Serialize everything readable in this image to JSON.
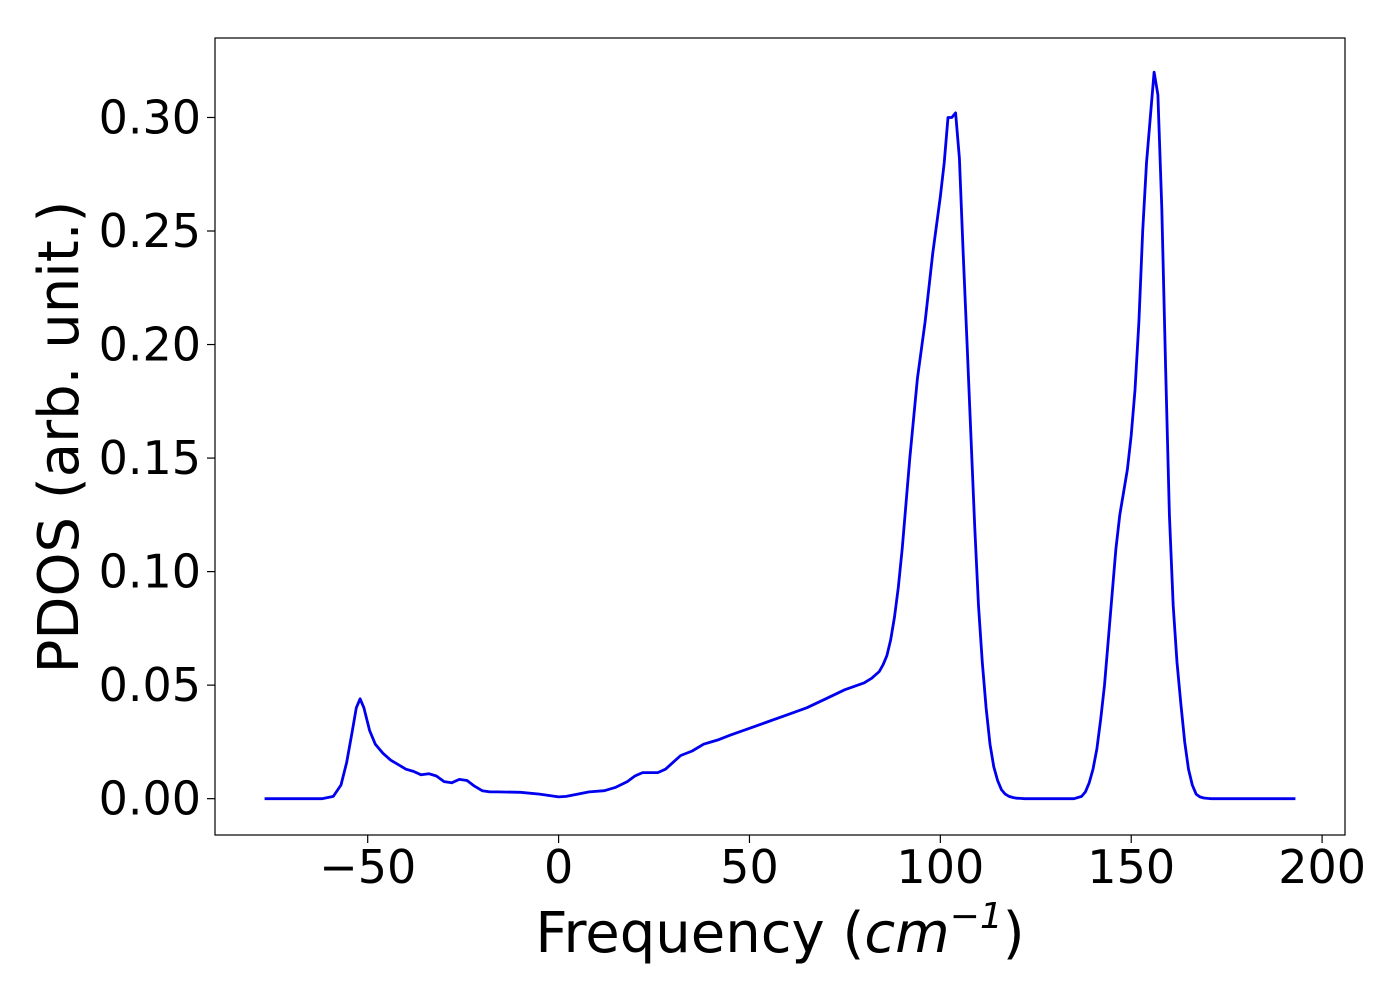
{
  "chart_data": {
    "type": "line",
    "title": "",
    "xlabel": "Frequency (cm⁻¹)",
    "xlabel_parts": {
      "prefix": "Frequency (",
      "unit_base": "cm",
      "unit_exp": "−1",
      "suffix": ")"
    },
    "ylabel": "PDOS (arb. unit.)",
    "xlim": [
      -90,
      206
    ],
    "ylim": [
      -0.016,
      0.335
    ],
    "xticks": [
      -50,
      0,
      50,
      100,
      150,
      200
    ],
    "xtick_labels": [
      "−50",
      "0",
      "50",
      "100",
      "150",
      "200"
    ],
    "yticks": [
      0.0,
      0.05,
      0.1,
      0.15,
      0.2,
      0.25,
      0.3
    ],
    "ytick_labels": [
      "0.00",
      "0.05",
      "0.10",
      "0.15",
      "0.20",
      "0.25",
      "0.30"
    ],
    "grid": false,
    "legend": "none",
    "series": [
      {
        "color": "#0000ee",
        "x": [
          -77,
          -70,
          -62,
          -59,
          -57,
          -55.5,
          -54,
          -53,
          -52,
          -51,
          -49.5,
          -48,
          -46,
          -44,
          -42,
          -40,
          -38,
          -36,
          -34,
          -32,
          -30,
          -28,
          -26,
          -24,
          -22,
          -20,
          -18,
          -16,
          -10,
          -5,
          0,
          2,
          5,
          8,
          12,
          15,
          18,
          20,
          22,
          24,
          26,
          28,
          30,
          32,
          35,
          38,
          40,
          42,
          45,
          50,
          55,
          60,
          65,
          70,
          75,
          80,
          82,
          84,
          85,
          86,
          87,
          88,
          89,
          90,
          91,
          92,
          94,
          96,
          98,
          100,
          101,
          102,
          103,
          104,
          105,
          106,
          107,
          108,
          109,
          110,
          111,
          112,
          113,
          114,
          115,
          116,
          117,
          118,
          119,
          120,
          121,
          122,
          123,
          124,
          126,
          130,
          135,
          137,
          138,
          139,
          140,
          141,
          142,
          143,
          144,
          145,
          146,
          147,
          148,
          149,
          150,
          151,
          152,
          153,
          154,
          155,
          156,
          157,
          158,
          159,
          160,
          161,
          162,
          163,
          164,
          165,
          166,
          167,
          168,
          169,
          170,
          171,
          172,
          173,
          174,
          175,
          176,
          178,
          182,
          186,
          193
        ],
        "y": [
          0.0,
          0.0,
          0.0,
          0.001,
          0.006,
          0.016,
          0.03,
          0.04,
          0.044,
          0.04,
          0.03,
          0.024,
          0.02,
          0.017,
          0.015,
          0.013,
          0.012,
          0.0105,
          0.011,
          0.01,
          0.0075,
          0.007,
          0.0085,
          0.008,
          0.0055,
          0.0035,
          0.003,
          0.003,
          0.0028,
          0.002,
          0.0008,
          0.001,
          0.002,
          0.003,
          0.0035,
          0.005,
          0.0075,
          0.01,
          0.0115,
          0.0115,
          0.0115,
          0.013,
          0.016,
          0.019,
          0.021,
          0.024,
          0.025,
          0.026,
          0.028,
          0.031,
          0.034,
          0.037,
          0.04,
          0.044,
          0.048,
          0.051,
          0.053,
          0.056,
          0.059,
          0.063,
          0.07,
          0.08,
          0.093,
          0.11,
          0.13,
          0.15,
          0.185,
          0.21,
          0.24,
          0.265,
          0.28,
          0.3,
          0.3,
          0.302,
          0.282,
          0.24,
          0.2,
          0.16,
          0.12,
          0.085,
          0.06,
          0.04,
          0.024,
          0.014,
          0.008,
          0.004,
          0.002,
          0.001,
          0.0005,
          0.0002,
          0.0001,
          0.0,
          0.0,
          0.0,
          0.0,
          0.0,
          0.0,
          0.001,
          0.003,
          0.007,
          0.013,
          0.022,
          0.035,
          0.05,
          0.07,
          0.09,
          0.11,
          0.125,
          0.135,
          0.145,
          0.16,
          0.18,
          0.21,
          0.25,
          0.28,
          0.3,
          0.32,
          0.31,
          0.26,
          0.19,
          0.125,
          0.085,
          0.06,
          0.042,
          0.025,
          0.013,
          0.006,
          0.002,
          0.0008,
          0.0003,
          0.0001,
          0.0,
          0.0,
          0.0,
          0.0,
          0.0,
          0.0,
          0.0,
          0.0,
          0.0,
          0.0
        ]
      }
    ]
  }
}
